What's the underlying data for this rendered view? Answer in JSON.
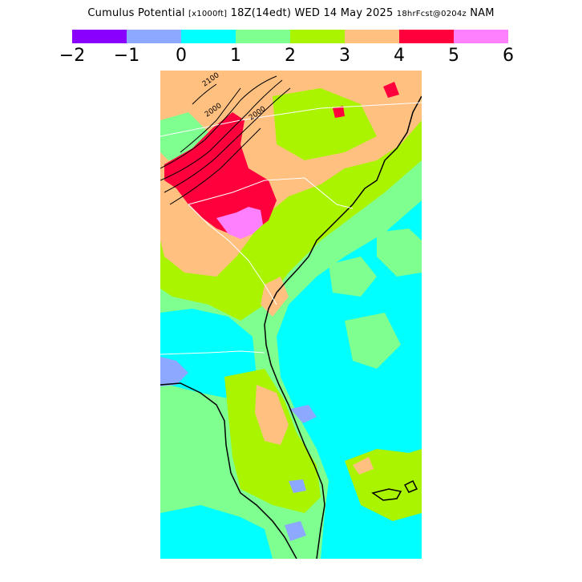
{
  "header": {
    "title_main": "Cumulus Potential",
    "title_units": "[x1000ft]",
    "title_time": "18Z(14edt) WED 14 May 2025",
    "title_fcst": "18hrFcst@0204z",
    "title_model": "NAM"
  },
  "legend": {
    "colors": [
      "#8a00ff",
      "#8ca8ff",
      "#00ffff",
      "#7fff8f",
      "#aaf400",
      "#ffc080",
      "#ff003c",
      "#ff80ff"
    ],
    "ticks": [
      "−2",
      "−1",
      "0",
      "1",
      "2",
      "3",
      "4",
      "5",
      "6"
    ]
  },
  "map": {
    "contour_labels": [
      "2100",
      "2000",
      "2000"
    ],
    "colors": {
      "purple": "#8a00ff",
      "blue": "#8ca8ff",
      "cyan": "#00ffff",
      "green": "#7fff8f",
      "yellow_green": "#aaf400",
      "orange": "#ffc080",
      "red": "#ff003c",
      "pink": "#ff80ff"
    }
  }
}
